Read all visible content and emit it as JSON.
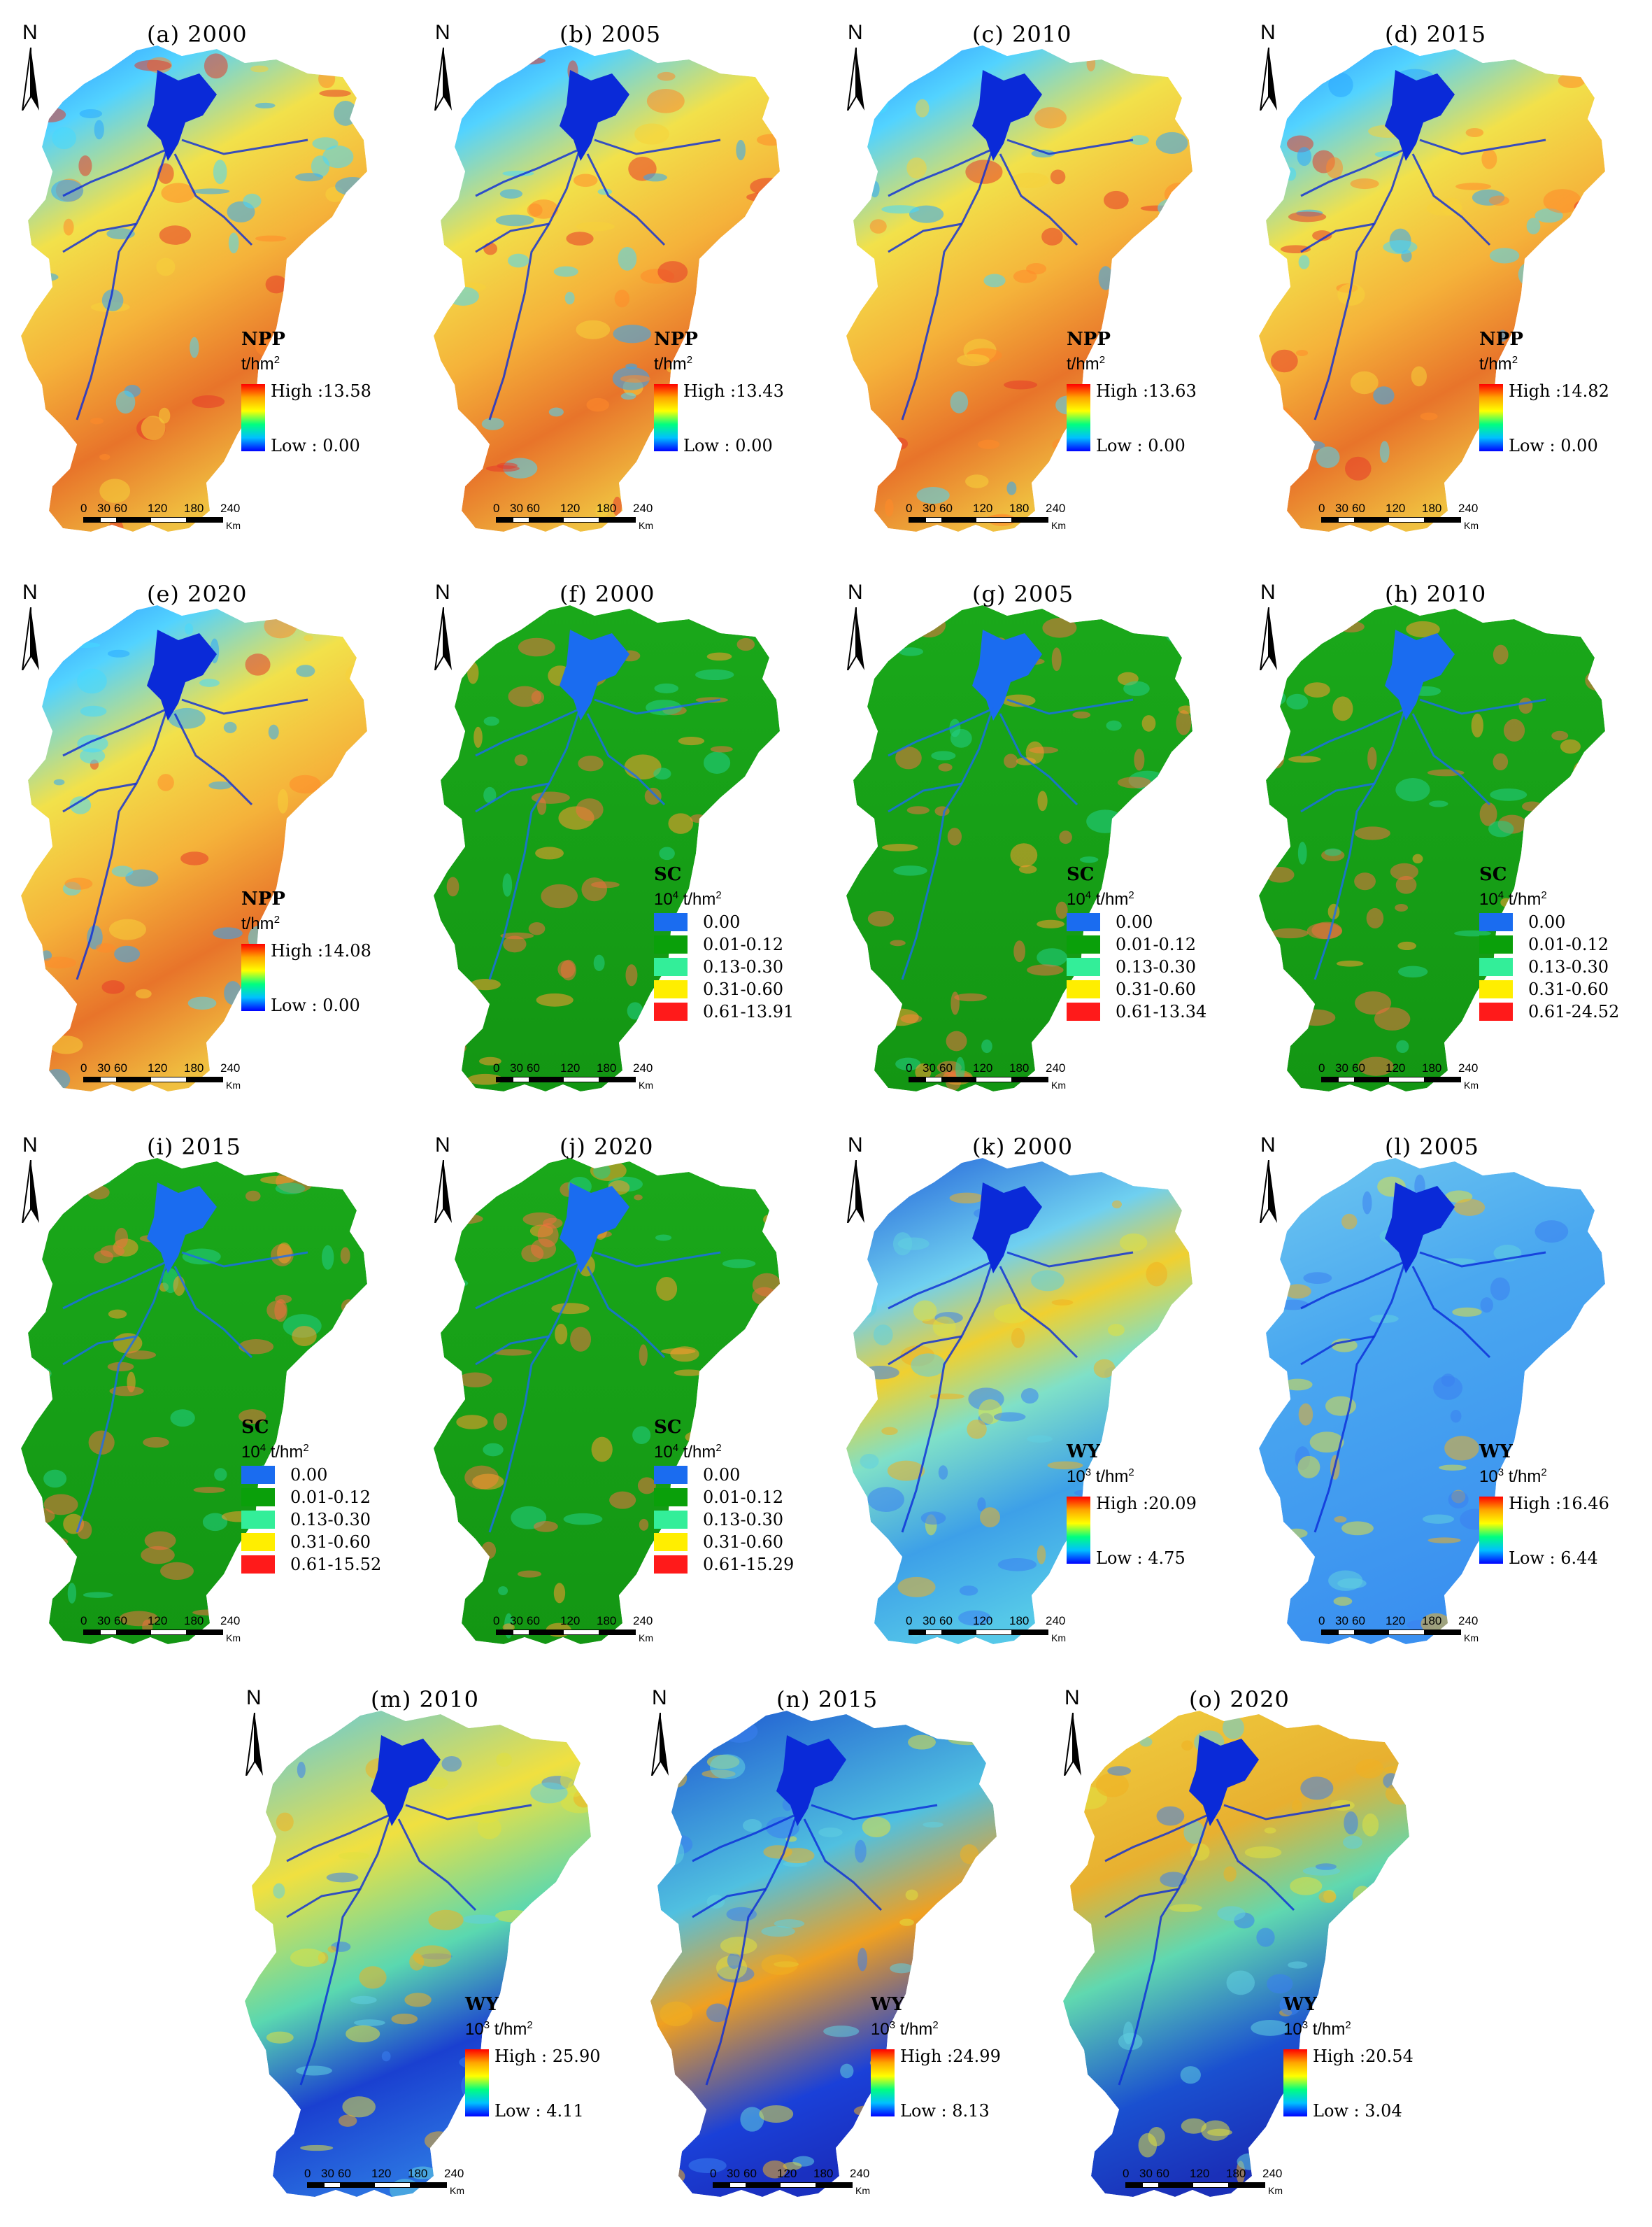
{
  "figure": {
    "north_label": "N",
    "scale": {
      "ticks": [
        "0",
        "30",
        "60",
        "120",
        "180",
        "240"
      ],
      "unit": "Km"
    },
    "sc_classes_colors": [
      "#1a6cf0",
      "#0aa00a",
      "#33ee99",
      "#ffee00",
      "#ff1a1a"
    ],
    "panels": [
      {
        "id": "a",
        "title": "(a) 2000",
        "type": "npp",
        "legend": {
          "name": "NPP",
          "unit_base": "t/hm",
          "unit_exp": "2",
          "high": "High :13.58",
          "low": "Low : 0.00"
        }
      },
      {
        "id": "b",
        "title": "(b) 2005",
        "type": "npp",
        "legend": {
          "name": "NPP",
          "unit_base": "t/hm",
          "unit_exp": "2",
          "high": "High :13.43",
          "low": "Low : 0.00"
        }
      },
      {
        "id": "c",
        "title": "(c) 2010",
        "type": "npp",
        "legend": {
          "name": "NPP",
          "unit_base": "t/hm",
          "unit_exp": "2",
          "high": "High :13.63",
          "low": "Low : 0.00"
        }
      },
      {
        "id": "d",
        "title": "(d) 2015",
        "type": "npp",
        "legend": {
          "name": "NPP",
          "unit_base": "t/hm",
          "unit_exp": "2",
          "high": "High :14.82",
          "low": "Low : 0.00"
        }
      },
      {
        "id": "e",
        "title": "(e) 2020",
        "type": "npp",
        "legend": {
          "name": "NPP",
          "unit_base": "t/hm",
          "unit_exp": "2",
          "high": "High :14.08",
          "low": "Low : 0.00"
        }
      },
      {
        "id": "f",
        "title": "(f) 2000",
        "type": "sc",
        "legend": {
          "name": "SC",
          "unit_pre": "10",
          "unit_pre_exp": "4",
          "unit_base": " t/hm",
          "unit_exp": "2",
          "classes": [
            "0.00",
            "0.01-0.12",
            "0.13-0.30",
            "0.31-0.60",
            "0.61-13.91"
          ]
        }
      },
      {
        "id": "g",
        "title": "(g) 2005",
        "type": "sc",
        "legend": {
          "name": "SC",
          "unit_pre": "10",
          "unit_pre_exp": "4",
          "unit_base": " t/hm",
          "unit_exp": "2",
          "classes": [
            "0.00",
            "0.01-0.12",
            "0.13-0.30",
            "0.31-0.60",
            "0.61-13.34"
          ]
        }
      },
      {
        "id": "h",
        "title": "(h) 2010",
        "type": "sc",
        "legend": {
          "name": "SC",
          "unit_pre": "10",
          "unit_pre_exp": "4",
          "unit_base": " t/hm",
          "unit_exp": "2",
          "classes": [
            "0.00",
            "0.01-0.12",
            "0.13-0.30",
            "0.31-0.60",
            "0.61-24.52"
          ]
        }
      },
      {
        "id": "i",
        "title": "(i) 2015",
        "type": "sc",
        "legend": {
          "name": "SC",
          "unit_pre": "10",
          "unit_pre_exp": "4",
          "unit_base": " t/hm",
          "unit_exp": "2",
          "classes": [
            "0.00",
            "0.01-0.12",
            "0.13-0.30",
            "0.31-0.60",
            "0.61-15.52"
          ]
        }
      },
      {
        "id": "j",
        "title": "(j) 2020",
        "type": "sc",
        "legend": {
          "name": "SC",
          "unit_pre": "10",
          "unit_pre_exp": "4",
          "unit_base": " t/hm",
          "unit_exp": "2",
          "classes": [
            "0.00",
            "0.01-0.12",
            "0.13-0.30",
            "0.31-0.60",
            "0.61-15.29"
          ]
        }
      },
      {
        "id": "k",
        "title": "(k) 2000",
        "type": "wy",
        "legend": {
          "name": "WY",
          "unit_pre": "10",
          "unit_pre_exp": "3",
          "unit_base": " t/hm",
          "unit_exp": "2",
          "high": "High :20.09",
          "low": "Low : 4.75"
        }
      },
      {
        "id": "l",
        "title": "(l) 2005",
        "type": "wy",
        "legend": {
          "name": "WY",
          "unit_pre": "10",
          "unit_pre_exp": "3",
          "unit_base": " t/hm",
          "unit_exp": "2",
          "high": "High :16.46",
          "low": "Low : 6.44"
        }
      },
      {
        "id": "m",
        "title": "(m) 2010",
        "type": "wy",
        "legend": {
          "name": "WY",
          "unit_pre": "10",
          "unit_pre_exp": "3",
          "unit_base": " t/hm",
          "unit_exp": "2",
          "high": "High : 25.90",
          "low": "Low : 4.11"
        }
      },
      {
        "id": "n",
        "title": "(n) 2015",
        "type": "wy",
        "legend": {
          "name": "WY",
          "unit_pre": "10",
          "unit_pre_exp": "3",
          "unit_base": " t/hm",
          "unit_exp": "2",
          "high": "High :24.99",
          "low": "Low : 8.13"
        }
      },
      {
        "id": "o",
        "title": "(o) 2020",
        "type": "wy",
        "legend": {
          "name": "WY",
          "unit_pre": "10",
          "unit_pre_exp": "3",
          "unit_base": " t/hm",
          "unit_exp": "2",
          "high": "High :20.54",
          "low": "Low : 3.04"
        }
      }
    ]
  }
}
